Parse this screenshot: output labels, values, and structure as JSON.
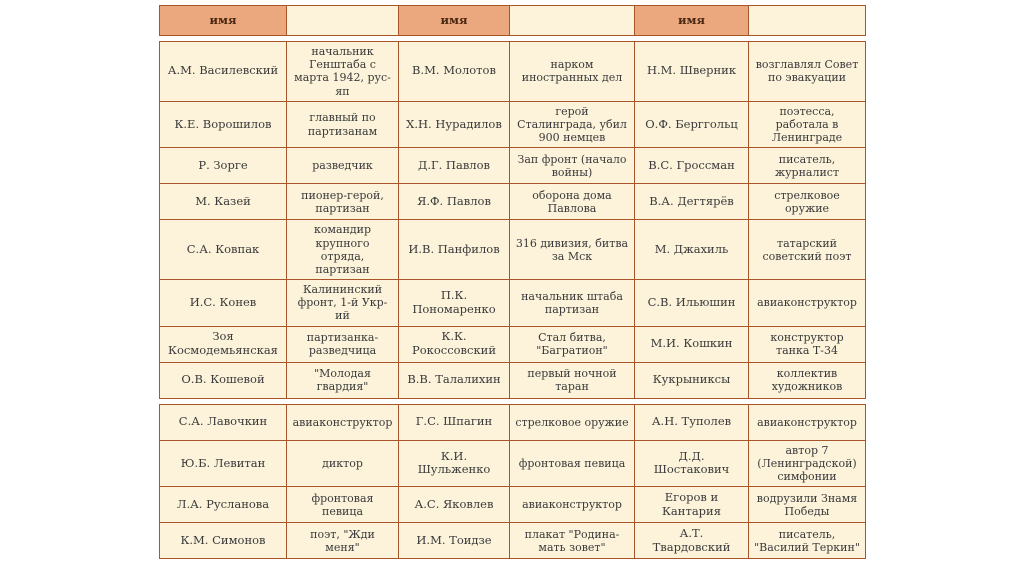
{
  "page": {
    "background": "#ffffff"
  },
  "table": {
    "header_label": "имя",
    "colors": {
      "border": "#a8552a",
      "header_bg": "#eba77d",
      "cell_bg": "#fcf3da",
      "text": "#3a3a3a",
      "header_text": "#4a2710"
    },
    "sections": [
      {
        "rows": [
          [
            "А.М. Василевский",
            "начальник Генштаба с марта 1942, рус-яп",
            "В.М. Молотов",
            "нарком иностранных дел",
            "Н.М. Шверник",
            "возглавлял Совет по эвакуации"
          ],
          [
            "К.Е. Ворошилов",
            "главный по партизанам",
            "Х.Н. Нурадилов",
            "герой Сталинграда, убил 900 немцев",
            "О.Ф. Берггольц",
            "поэтесса, работала в Ленинграде"
          ],
          [
            "Р. Зорге",
            "разведчик",
            "Д.Г. Павлов",
            "Зап фронт (начало войны)",
            "В.С. Гроссман",
            "писатель, журналист"
          ],
          [
            "М. Казей",
            "пионер-герой, партизан",
            "Я.Ф. Павлов",
            "оборона дома Павлова",
            "В.А. Дегтярёв",
            "стрелковое оружие"
          ],
          [
            "С.А. Ковпак",
            "командир крупного отряда, партизан",
            "И.В. Панфилов",
            "316 дивизия, битва за Мск",
            "М. Джахиль",
            "татарский советский поэт"
          ],
          [
            "И.С. Конев",
            "Калининский фронт, 1-й Укр-ий",
            "П.К. Пономаренко",
            "начальник штаба партизан",
            "С.В. Ильюшин",
            "авиаконструктор"
          ],
          [
            "Зоя Космодемьянская",
            "партизанка-разведчица",
            "К.К. Рокоссовский",
            "Стал битва, \"Багратион\"",
            "М.И. Кошкин",
            "конструктор танка Т-34"
          ],
          [
            "О.В. Кошевой",
            "\"Молодая гвардия\"",
            "В.В. Талалихин",
            "первый ночной таран",
            "Кукрыниксы",
            "коллектив художников"
          ]
        ]
      },
      {
        "rows": [
          [
            "С.А. Лавочкин",
            "авиаконструктор",
            "Г.С. Шпагин",
            "стрелковое оружие",
            "А.Н. Туполев",
            "авиаконструктор"
          ],
          [
            "Ю.Б. Левитан",
            "диктор",
            "К.И. Шульженко",
            "фронтовая певица",
            "Д.Д. Шостакович",
            "автор 7 (Ленинградской) симфонии"
          ],
          [
            "Л.А. Русланова",
            "фронтовая певица",
            "А.С. Яковлев",
            "авиаконструктор",
            "Егоров и Кантария",
            "водрузили Знамя Победы"
          ],
          [
            "К.М. Симонов",
            "поэт, \"Жди меня\"",
            "И.М. Тоидзе",
            "плакат \"Родина-мать зовет\"",
            "А.Т. Твардовский",
            "писатель, \"Василий Теркин\""
          ]
        ]
      }
    ]
  }
}
